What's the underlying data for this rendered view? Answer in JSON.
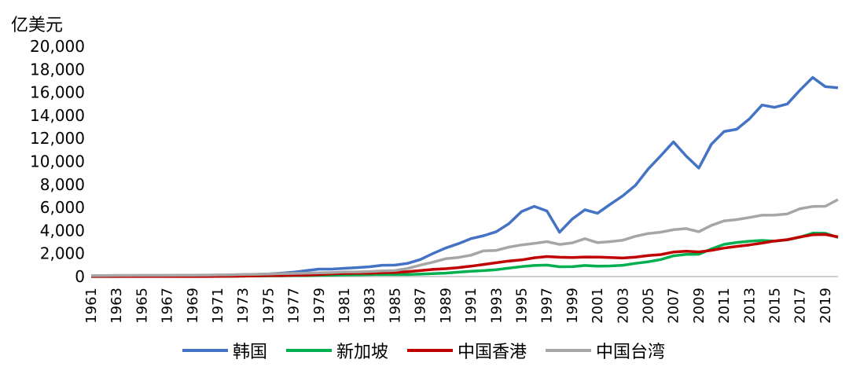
{
  "chart_data": {
    "type": "line",
    "ylabel": "亿美元",
    "ylim": [
      0,
      20000
    ],
    "yticks": [
      0,
      2000,
      4000,
      6000,
      8000,
      10000,
      12000,
      14000,
      16000,
      18000,
      20000
    ],
    "ytick_labels": [
      "0",
      "2,000",
      "4,000",
      "6,000",
      "8,000",
      "10,000",
      "12,000",
      "14,000",
      "16,000",
      "18,000",
      "20,000"
    ],
    "x": [
      1961,
      1962,
      1963,
      1964,
      1965,
      1966,
      1967,
      1968,
      1969,
      1970,
      1971,
      1972,
      1973,
      1974,
      1975,
      1976,
      1977,
      1978,
      1979,
      1980,
      1981,
      1982,
      1983,
      1984,
      1985,
      1986,
      1987,
      1988,
      1989,
      1990,
      1991,
      1992,
      1993,
      1994,
      1995,
      1996,
      1997,
      1998,
      1999,
      2000,
      2001,
      2002,
      2003,
      2004,
      2005,
      2006,
      2007,
      2008,
      2009,
      2010,
      2011,
      2012,
      2013,
      2014,
      2015,
      2016,
      2017,
      2018,
      2019,
      2020
    ],
    "xtick_labels": [
      "1961",
      "1963",
      "1965",
      "1967",
      "1969",
      "1971",
      "1973",
      "1975",
      "1977",
      "1979",
      "1981",
      "1983",
      "1985",
      "1987",
      "1989",
      "1991",
      "1993",
      "1995",
      "1997",
      "1999",
      "2001",
      "2003",
      "2005",
      "2007",
      "2009",
      "2011",
      "2013",
      "2015",
      "2017",
      "2019"
    ],
    "grid": false,
    "legend_position": "bottom",
    "series": [
      {
        "name": "韩国",
        "color": "#4472C4",
        "values": [
          20,
          25,
          30,
          30,
          35,
          40,
          50,
          60,
          75,
          90,
          100,
          110,
          140,
          190,
          220,
          300,
          380,
          520,
          650,
          650,
          720,
          780,
          850,
          980,
          1000,
          1150,
          1480,
          2000,
          2480,
          2850,
          3300,
          3550,
          3900,
          4600,
          5650,
          6100,
          5700,
          3850,
          5000,
          5800,
          5500,
          6270,
          7020,
          7930,
          9340,
          10500,
          11700,
          10480,
          9430,
          11500,
          12600,
          12800,
          13700,
          14900,
          14700,
          15000,
          16200,
          17300,
          16500,
          16400
        ]
      },
      {
        "name": "新加坡",
        "color": "#00B050",
        "values": [
          10,
          10,
          10,
          15,
          15,
          15,
          15,
          20,
          20,
          20,
          20,
          30,
          40,
          50,
          60,
          70,
          80,
          90,
          110,
          120,
          140,
          150,
          170,
          190,
          180,
          180,
          210,
          260,
          300,
          380,
          460,
          520,
          600,
          730,
          870,
          960,
          1000,
          850,
          860,
          960,
          900,
          920,
          980,
          1150,
          1280,
          1480,
          1800,
          1930,
          1940,
          2400,
          2800,
          2960,
          3070,
          3140,
          3080,
          3190,
          3430,
          3770,
          3760,
          3400
        ]
      },
      {
        "name": "中国香港",
        "color": "#C00000",
        "values": [
          10,
          10,
          10,
          10,
          10,
          10,
          10,
          10,
          10,
          10,
          20,
          30,
          40,
          60,
          80,
          90,
          110,
          130,
          170,
          230,
          270,
          290,
          290,
          340,
          360,
          420,
          520,
          620,
          680,
          780,
          900,
          1050,
          1200,
          1350,
          1450,
          1630,
          1740,
          1680,
          1660,
          1700,
          1690,
          1660,
          1610,
          1690,
          1820,
          1910,
          2130,
          2200,
          2140,
          2280,
          2480,
          2620,
          2750,
          2910,
          3090,
          3210,
          3440,
          3630,
          3660,
          3450
        ]
      },
      {
        "name": "中国台湾",
        "color": "#A6A6A6",
        "values": [
          80,
          90,
          100,
          100,
          110,
          110,
          110,
          120,
          120,
          130,
          140,
          160,
          190,
          200,
          220,
          250,
          270,
          300,
          330,
          350,
          400,
          400,
          440,
          500,
          520,
          700,
          1000,
          1250,
          1550,
          1660,
          1860,
          2240,
          2270,
          2560,
          2750,
          2880,
          3040,
          2790,
          2930,
          3290,
          2950,
          3040,
          3160,
          3500,
          3740,
          3860,
          4070,
          4170,
          3900,
          4450,
          4840,
          4950,
          5130,
          5330,
          5340,
          5440,
          5900,
          6090,
          6110,
          6690
        ]
      }
    ]
  }
}
